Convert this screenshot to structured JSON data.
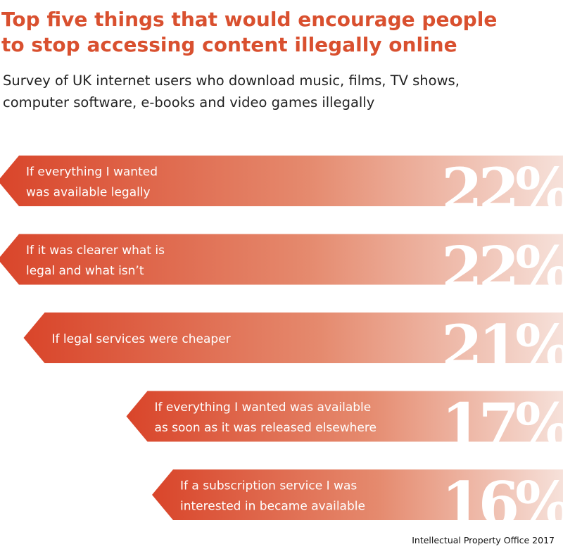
{
  "title_lines": [
    "Top five things that would encourage people",
    "to stop accessing content illegally online"
  ],
  "subtitle_lines": [
    "Survey of UK internet users who download music, films, TV shows,",
    "computer software, e-books and video games illegally"
  ],
  "source": "Intellectual Property Office 2017",
  "colors": {
    "accent": "#d9502f",
    "bar_start": "#d9452a",
    "bar_end": "#f6e1da"
  },
  "chart_data": {
    "type": "bar",
    "orientation": "horizontal",
    "title": "Top five things that would encourage people to stop accessing content illegally online",
    "subtitle": "Survey of UK internet users who download music, films, TV shows, computer software, e-books and video games illegally",
    "categories": [
      [
        "If everything I wanted",
        "was available legally"
      ],
      [
        "If it was clearer what is",
        "legal and what isn’t"
      ],
      [
        "If legal services were cheaper"
      ],
      [
        "If everything I wanted was available",
        "as soon as it was released elsewhere"
      ],
      [
        "If a subscription service I was",
        "interested in became available"
      ]
    ],
    "values": [
      22,
      22,
      21,
      17,
      16
    ],
    "value_labels": [
      "22%",
      "22%",
      "21%",
      "17%",
      "16%"
    ],
    "unit": "%",
    "xlabel": "",
    "ylabel": "",
    "xlim": [
      0,
      25
    ],
    "grid": false,
    "legend": "none"
  }
}
